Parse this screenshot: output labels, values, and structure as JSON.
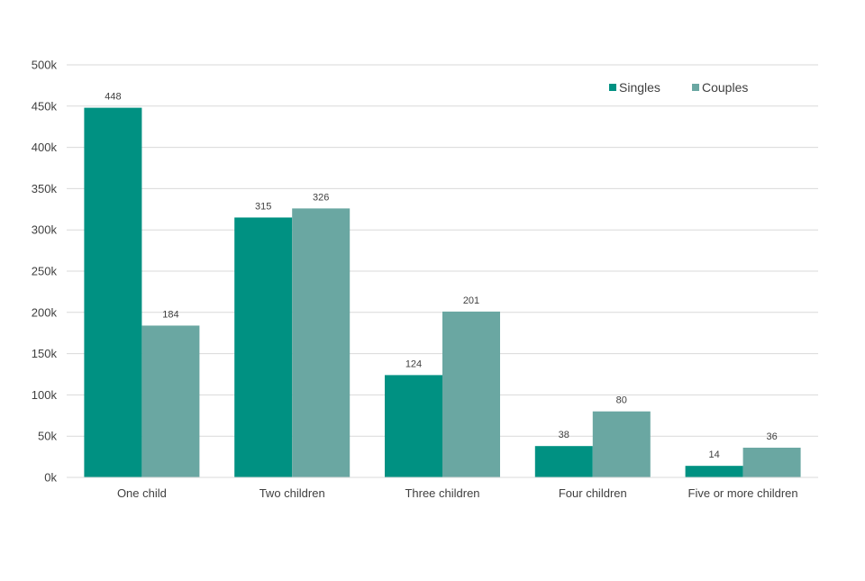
{
  "chart_data": {
    "type": "bar",
    "categories": [
      "One child",
      "Two children",
      "Three children",
      "Four children",
      "Five or more children"
    ],
    "series": [
      {
        "name": "Singles",
        "values": [
          448,
          315,
          124,
          38,
          14
        ],
        "color": "#009182"
      },
      {
        "name": "Couples",
        "values": [
          184,
          326,
          201,
          80,
          36
        ],
        "color": "#6aa7a2"
      }
    ],
    "value_unit": "thousands",
    "ylim": [
      0,
      500
    ],
    "y_ticks": [
      {
        "value": 0,
        "label": "0k"
      },
      {
        "value": 50,
        "label": "50k"
      },
      {
        "value": 100,
        "label": "100k"
      },
      {
        "value": 150,
        "label": "150k"
      },
      {
        "value": 200,
        "label": "200k"
      },
      {
        "value": 250,
        "label": "250k"
      },
      {
        "value": 300,
        "label": "300k"
      },
      {
        "value": 350,
        "label": "350k"
      },
      {
        "value": 400,
        "label": "400k"
      },
      {
        "value": 450,
        "label": "450k"
      },
      {
        "value": 500,
        "label": "500k"
      }
    ],
    "title": "",
    "xlabel": "",
    "ylabel": "",
    "grid": true,
    "legend_position": "top-right",
    "colors": {
      "gridline": "#d9d9d9",
      "axis": "#d9d9d9",
      "text": "#404040"
    }
  }
}
